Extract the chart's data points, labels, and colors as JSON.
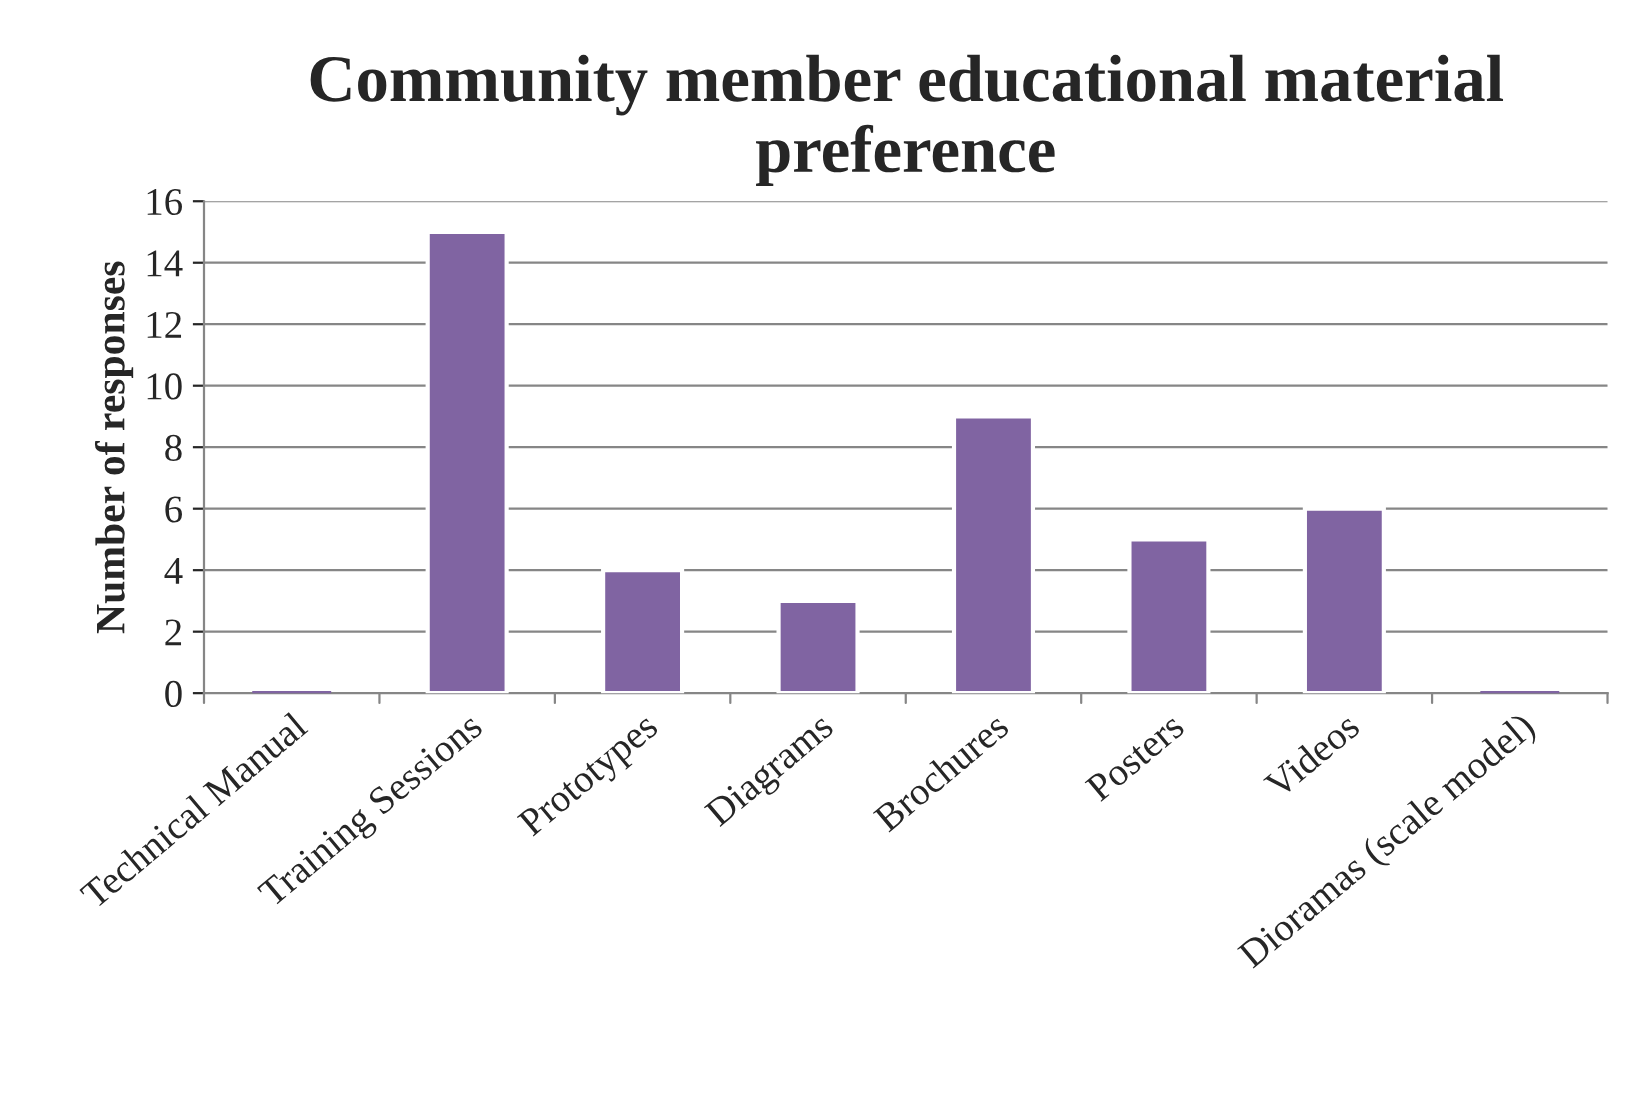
{
  "chart_data": {
    "type": "bar",
    "title": "Community member educational material preference",
    "ylabel": "Number of responses",
    "categories": [
      "Technical Manual",
      "Training Sessions",
      "Prototypes",
      "Diagrams",
      "Brochures",
      "Posters",
      "Videos",
      "Dioramas (scale model)"
    ],
    "values": [
      0,
      15,
      4,
      3,
      9,
      5,
      6,
      0
    ],
    "color": "#8064a2",
    "ylim": [
      0,
      16
    ],
    "yticks": [
      0,
      2,
      4,
      6,
      8,
      10,
      12,
      14,
      16
    ],
    "grid": "y",
    "legend": false
  }
}
